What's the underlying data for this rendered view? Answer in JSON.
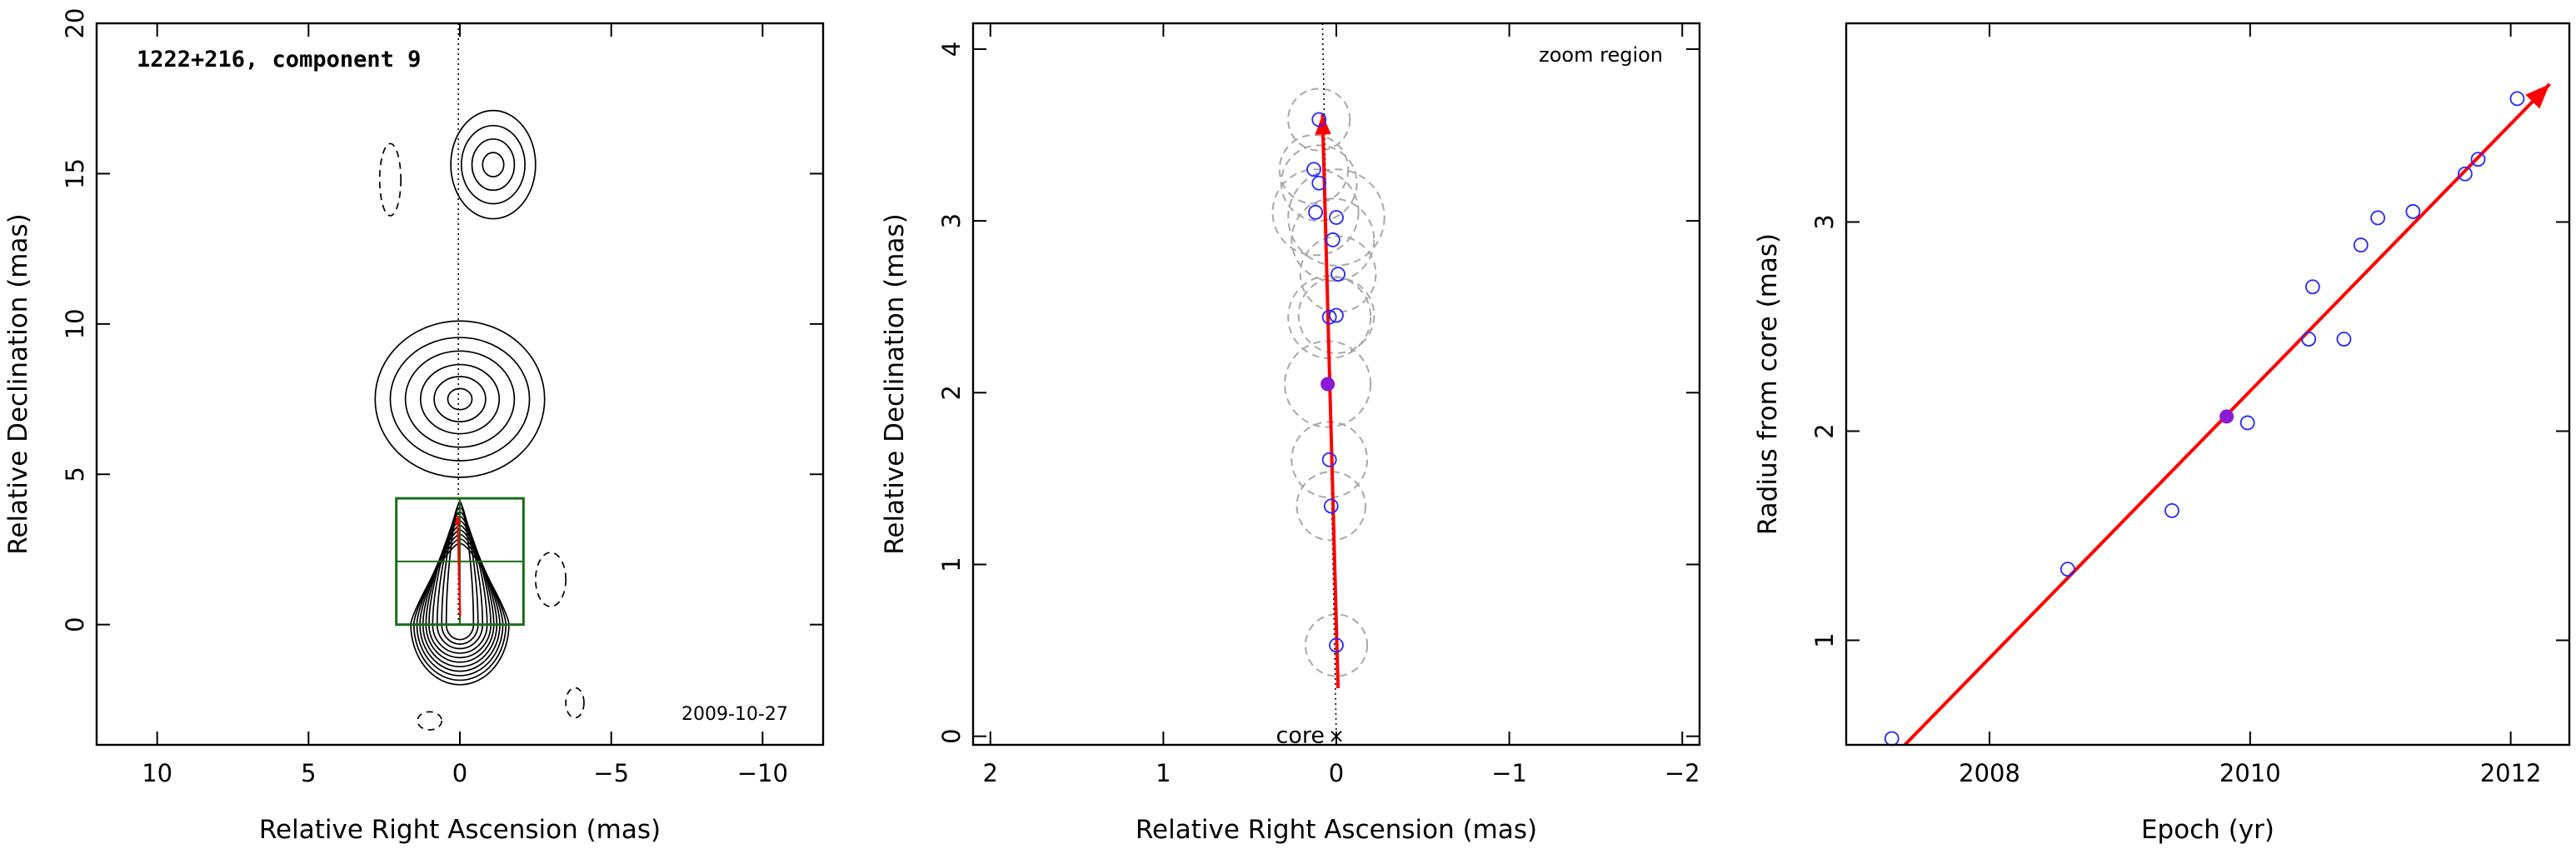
{
  "colors": {
    "axis": "#000000",
    "contour": "#000000",
    "box": "#1a6b1a",
    "arrow": "#ff0000",
    "points": "#2626ff",
    "highlight": "#8a1ad6",
    "gauss": "#a8a8a8"
  },
  "chart_data": [
    {
      "type": "contour",
      "title": "1222+216, component 9",
      "date_label": "2009-10-27",
      "xlabel": "Relative Right Ascension (mas)",
      "ylabel": "Relative Declination (mas)",
      "xlim": [
        12,
        -12
      ],
      "ylim": [
        -4,
        20
      ],
      "xticks": [
        10,
        5,
        0,
        -5,
        -10
      ],
      "xtick_labels": [
        "10",
        "5",
        "0",
        "−5",
        "−10"
      ],
      "yticks": [
        0,
        5,
        10,
        15,
        20
      ],
      "ytick_labels": [
        "0",
        "5",
        "10",
        "15",
        "20"
      ],
      "zoom_box": {
        "x": [
          2.1,
          -2.1
        ],
        "y": [
          0,
          4.2
        ]
      },
      "contour_groups": [
        {
          "cx": 0.0,
          "cy": 0.0,
          "rx": [
            0.45,
            0.6,
            0.75,
            0.9,
            1.02,
            1.12,
            1.22,
            1.32,
            1.42,
            1.52,
            1.62
          ],
          "ry": [
            0.5,
            0.65,
            0.8,
            0.95,
            1.1,
            1.25,
            1.4,
            1.55,
            1.7,
            1.85,
            2.0
          ],
          "tail": [
            3.6,
            3.4,
            3.1,
            2.8,
            2.5,
            2.2,
            1.9,
            1.6,
            1.3,
            1.0,
            0.7
          ]
        },
        {
          "cx": 0.0,
          "cy": 7.5,
          "rx": [
            0.4,
            0.85,
            1.3,
            1.8,
            2.3,
            2.8
          ],
          "ry": [
            0.35,
            0.75,
            1.15,
            1.6,
            2.05,
            2.6
          ]
        },
        {
          "cx": -1.1,
          "cy": 15.3,
          "rx": [
            0.35,
            0.7,
            1.05,
            1.4
          ],
          "ry": [
            0.4,
            0.85,
            1.3,
            1.8
          ]
        },
        {
          "cx": -3.0,
          "cy": 1.5,
          "rx": [
            0.5
          ],
          "ry": [
            0.9
          ],
          "dashed": true
        },
        {
          "cx": 2.3,
          "cy": 14.8,
          "rx": [
            0.35
          ],
          "ry": [
            1.2
          ],
          "dashed": true
        },
        {
          "cx": -3.8,
          "cy": -2.6,
          "rx": [
            0.3
          ],
          "ry": [
            0.5
          ],
          "dashed": true
        },
        {
          "cx": 1.0,
          "cy": -3.2,
          "rx": [
            0.4
          ],
          "ry": [
            0.3
          ],
          "dashed": true
        }
      ]
    },
    {
      "type": "scatter",
      "title": "zoom region",
      "core_label": "core",
      "xlabel": "Relative Right Ascension (mas)",
      "ylabel": "Relative Declination (mas)",
      "xlim": [
        2.1,
        -2.1
      ],
      "ylim": [
        -0.05,
        4.15
      ],
      "xticks": [
        2,
        1,
        0,
        -1,
        -2
      ],
      "xtick_labels": [
        "2",
        "1",
        "0",
        "−1",
        "−2"
      ],
      "yticks": [
        0,
        1,
        2,
        3,
        4
      ],
      "ytick_labels": [
        "0",
        "1",
        "2",
        "3",
        "4"
      ],
      "arrow": {
        "from": [
          -0.01,
          0.28
        ],
        "to": [
          0.08,
          3.62
        ]
      },
      "points": [
        {
          "x": 0.0,
          "y": 0.53,
          "r": 0.18
        },
        {
          "x": 0.03,
          "y": 1.34,
          "r": 0.2
        },
        {
          "x": 0.04,
          "y": 1.61,
          "r": 0.22
        },
        {
          "x": 0.05,
          "y": 2.05,
          "r": 0.25,
          "highlight": true
        },
        {
          "x": 0.0,
          "y": 2.45,
          "r": 0.22
        },
        {
          "x": 0.04,
          "y": 2.44,
          "r": 0.24
        },
        {
          "x": -0.01,
          "y": 2.69,
          "r": 0.22
        },
        {
          "x": 0.02,
          "y": 2.89,
          "r": 0.24
        },
        {
          "x": 0.0,
          "y": 3.02,
          "r": 0.28
        },
        {
          "x": 0.12,
          "y": 3.05,
          "r": 0.25
        },
        {
          "x": 0.1,
          "y": 3.22,
          "r": 0.22
        },
        {
          "x": 0.13,
          "y": 3.3,
          "r": 0.2
        },
        {
          "x": 0.1,
          "y": 3.59,
          "r": 0.18
        }
      ]
    },
    {
      "type": "scatter",
      "xlabel": "Epoch (yr)",
      "ylabel": "Radius from core (mas)",
      "xlim": [
        2006.9,
        2012.45
      ],
      "ylim": [
        0.5,
        3.95
      ],
      "xticks": [
        2008,
        2010,
        2012
      ],
      "xtick_labels": [
        "2008",
        "2010",
        "2012"
      ],
      "yticks": [
        1,
        2,
        3
      ],
      "ytick_labels": [
        "1",
        "2",
        "3"
      ],
      "fit_line": {
        "from": [
          2007.35,
          0.5
        ],
        "to": [
          2012.3,
          3.66
        ]
      },
      "points": [
        {
          "x": 2007.25,
          "y": 0.53
        },
        {
          "x": 2008.6,
          "y": 1.34
        },
        {
          "x": 2009.4,
          "y": 1.62
        },
        {
          "x": 2009.82,
          "y": 2.07,
          "highlight": true
        },
        {
          "x": 2009.98,
          "y": 2.04
        },
        {
          "x": 2010.45,
          "y": 2.44
        },
        {
          "x": 2010.48,
          "y": 2.69
        },
        {
          "x": 2010.72,
          "y": 2.44
        },
        {
          "x": 2010.85,
          "y": 2.89
        },
        {
          "x": 2010.98,
          "y": 3.02
        },
        {
          "x": 2011.25,
          "y": 3.05
        },
        {
          "x": 2011.65,
          "y": 3.23
        },
        {
          "x": 2011.75,
          "y": 3.3
        },
        {
          "x": 2012.05,
          "y": 3.59
        }
      ]
    }
  ]
}
